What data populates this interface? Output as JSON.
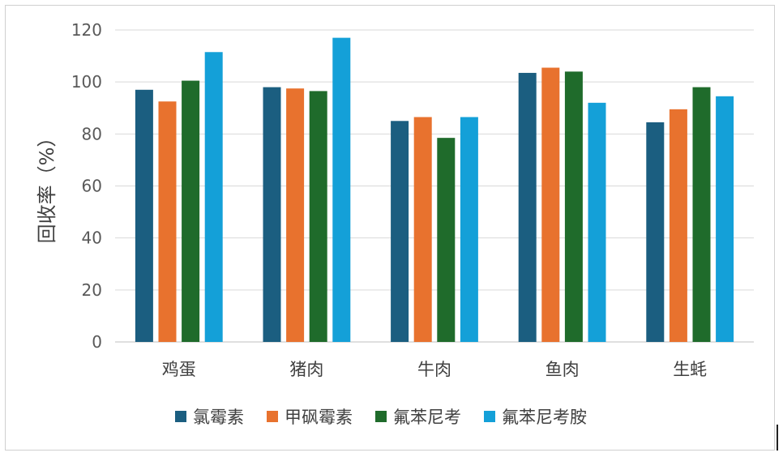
{
  "colors": {
    "氯霉素": "#1b5e80",
    "甲砜霉素": "#e8722e",
    "氟苯尼考": "#1f6b2b",
    "氟苯尼考胺": "#14a0d8",
    "grid": "#d9d9d9",
    "axis": "#bfbfbf"
  },
  "chart_data": {
    "type": "bar",
    "ylabel": "回收率（%）",
    "xlabel": "",
    "ylim": [
      0,
      120
    ],
    "yticks": [
      0,
      20,
      40,
      60,
      80,
      100,
      120
    ],
    "grid": true,
    "legend_position": "bottom",
    "categories": [
      "鸡蛋",
      "猪肉",
      "牛肉",
      "鱼肉",
      "生蚝"
    ],
    "series": [
      {
        "name": "氯霉素",
        "values": [
          97.0,
          98.0,
          85.0,
          103.5,
          84.5
        ]
      },
      {
        "name": "甲砜霉素",
        "values": [
          92.5,
          97.5,
          86.5,
          105.5,
          89.5
        ]
      },
      {
        "name": "氟苯尼考",
        "values": [
          100.5,
          96.5,
          78.5,
          104.0,
          98.0
        ]
      },
      {
        "name": "氟苯尼考胺",
        "values": [
          111.5,
          117.0,
          86.5,
          92.0,
          94.5
        ]
      }
    ]
  }
}
